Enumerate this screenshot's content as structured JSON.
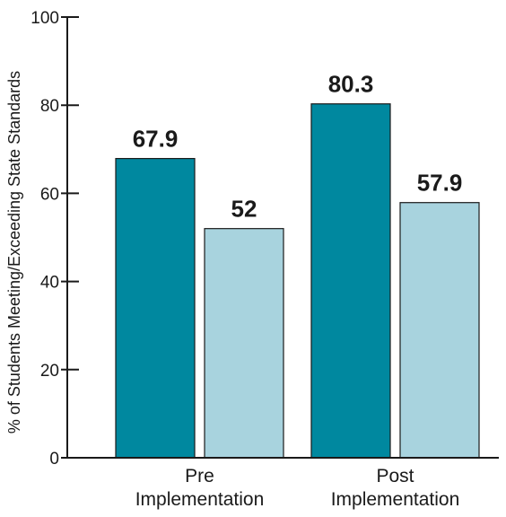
{
  "chart_data": {
    "type": "bar",
    "title": "",
    "xlabel": "",
    "ylabel": "% of Students Meeting/Exceeding State Standards",
    "ylim": [
      0,
      100
    ],
    "yticks": [
      0,
      20,
      40,
      60,
      80,
      100
    ],
    "grid": false,
    "categories": [
      [
        "Pre",
        "Implementation"
      ],
      [
        "Post",
        "Implementation"
      ]
    ],
    "series": [
      {
        "values": [
          67.9,
          80.3
        ],
        "labels": [
          "67.9",
          "80.3"
        ],
        "color": "#00889f"
      },
      {
        "values": [
          52,
          57.9
        ],
        "labels": [
          "52",
          "57.9"
        ],
        "color": "#a8d3de"
      }
    ]
  }
}
